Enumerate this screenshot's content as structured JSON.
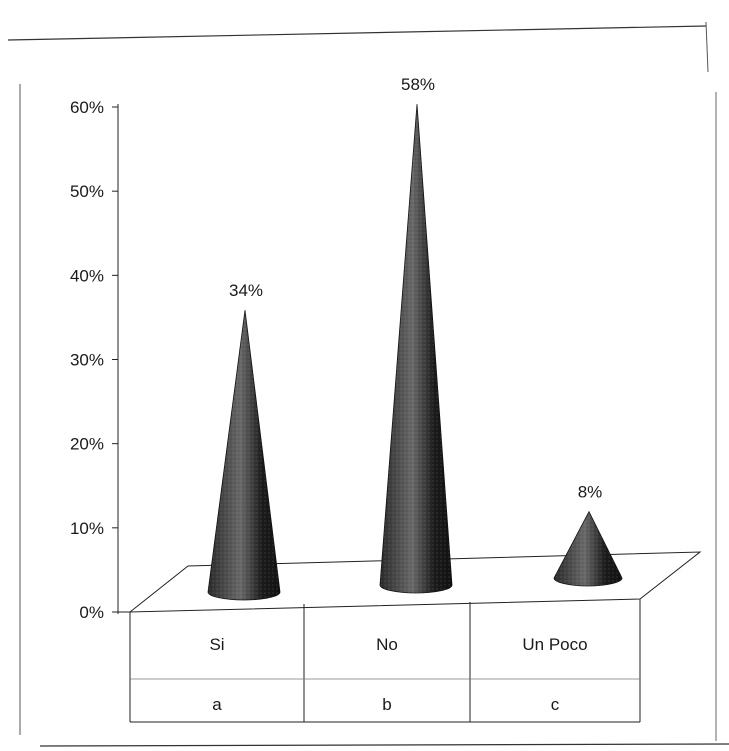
{
  "chart_data": {
    "type": "bar",
    "bar_shape": "cone",
    "view": "3d",
    "categories": [
      "Si",
      "No",
      "Un Poco"
    ],
    "sub_categories": [
      "a",
      "b",
      "c"
    ],
    "values": [
      34,
      58,
      8
    ],
    "value_labels": [
      "34%",
      "58%",
      "8%"
    ],
    "y_ticks": [
      "0%",
      "10%",
      "20%",
      "30%",
      "40%",
      "50%",
      "60%"
    ],
    "ylim": [
      0,
      60
    ],
    "y_unit": "%",
    "grid": false,
    "legend": "none",
    "colors": {
      "cone": "#1c1c1c",
      "highlight": "#6a6a6a",
      "line": "#222222"
    }
  }
}
